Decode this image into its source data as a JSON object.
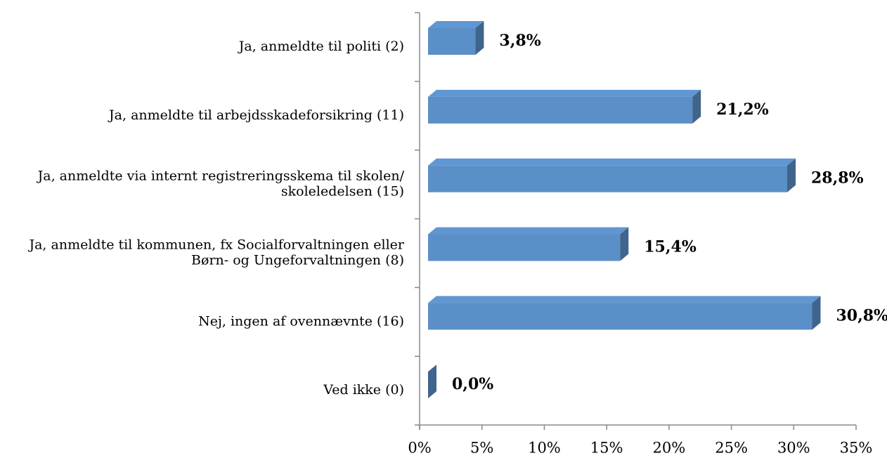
{
  "chart_data": {
    "type": "bar",
    "orientation": "horizontal",
    "categories": [
      "Ja, anmeldte til politi (2)",
      "Ja, anmeldte til arbejdsskadeforsikring (11)",
      "Ja, anmeldte via internt registreringsskema til skolen/\nskoleledelsen (15)",
      "Ja, anmeldte til kommunen, fx Socialforvaltningen eller\nBørn- og Ungeforvaltningen (8)",
      "Nej, ingen af ovennævnte (16)",
      "Ved ikke (0)"
    ],
    "values": [
      3.8,
      21.2,
      28.8,
      15.4,
      30.8,
      0.0
    ],
    "value_labels": [
      "3,8%",
      "21,2%",
      "28,8%",
      "15,4%",
      "30,8%",
      "0,0%"
    ],
    "color": "#5b8fc7",
    "xlim": [
      0,
      35
    ],
    "xticks": [
      {
        "value": 0,
        "label": "0%"
      },
      {
        "value": 5,
        "label": "5%"
      },
      {
        "value": 10,
        "label": "10%"
      },
      {
        "value": 15,
        "label": "15%"
      },
      {
        "value": 20,
        "label": "20%"
      },
      {
        "value": 25,
        "label": "25%"
      },
      {
        "value": 30,
        "label": "30%"
      },
      {
        "value": 35,
        "label": "35%"
      }
    ],
    "grid": false
  }
}
